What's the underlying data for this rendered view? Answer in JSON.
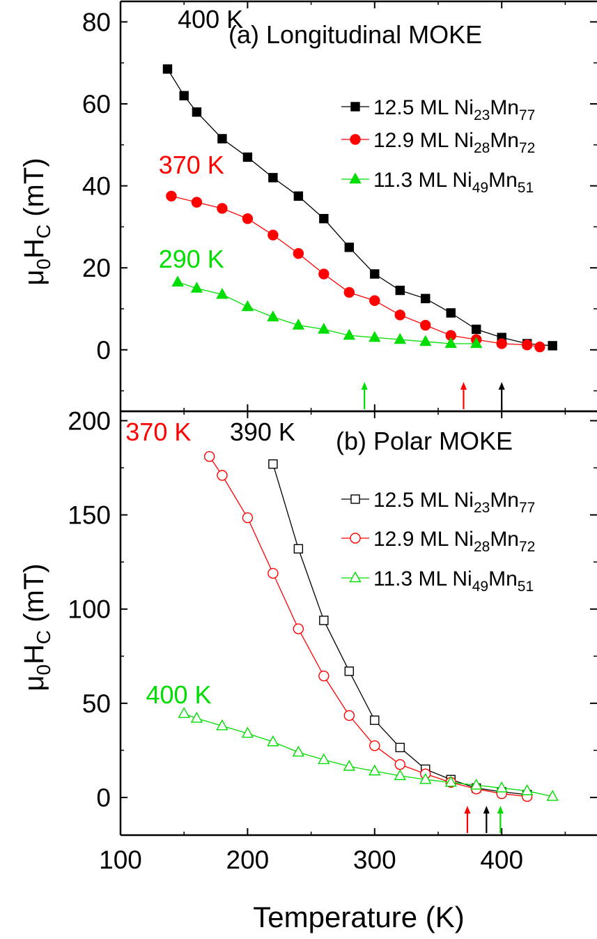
{
  "chart_data": [
    {
      "type": "line",
      "panel_label": "(a) Longitudinal MOKE",
      "xlabel": "",
      "ylabel": "μ0HC (mT)",
      "xlim": [
        100,
        475
      ],
      "ylim": [
        -15,
        85
      ],
      "x_ticks": [
        100,
        200,
        300,
        400
      ],
      "y_ticks": [
        0,
        20,
        40,
        60,
        80
      ],
      "y_tick_labels": [
        "0",
        "20",
        "40",
        "60",
        "80"
      ],
      "grid": false,
      "legend_position": "right",
      "series": [
        {
          "name": "12.5 ML Ni23Mn77",
          "label_main": "12.5 ML Ni",
          "sub1": "23",
          "mid": "Mn",
          "sub2": "77",
          "color": "#000000",
          "marker": "square",
          "filled": true,
          "x": [
            137,
            150,
            160,
            180,
            200,
            220,
            240,
            260,
            280,
            300,
            320,
            340,
            360,
            380,
            400,
            420,
            440
          ],
          "y": [
            68.5,
            62,
            58,
            51.5,
            47,
            42,
            37.5,
            32,
            25,
            18.5,
            14.5,
            12.5,
            9,
            5,
            3,
            1.5,
            1
          ]
        },
        {
          "name": "12.9 ML Ni28Mn72",
          "label_main": "12.9 ML Ni",
          "sub1": "28",
          "mid": "Mn",
          "sub2": "72",
          "color": "#ff0000",
          "marker": "circle",
          "filled": true,
          "x": [
            140,
            160,
            180,
            200,
            220,
            240,
            260,
            280,
            300,
            320,
            340,
            360,
            380,
            400,
            420,
            430
          ],
          "y": [
            37.5,
            36,
            34.5,
            32,
            28,
            23.5,
            18.5,
            14,
            12,
            8.5,
            6,
            3.5,
            2.5,
            1.5,
            1.2,
            0.7
          ]
        },
        {
          "name": "11.3 ML Ni49Mn51",
          "label_main": "11.3 ML Ni",
          "sub1": "49",
          "mid": "Mn",
          "sub2": "51",
          "color": "#00dd00",
          "marker": "triangle",
          "filled": true,
          "x": [
            145,
            160,
            180,
            200,
            220,
            240,
            260,
            280,
            300,
            320,
            340,
            360,
            380
          ],
          "y": [
            16.5,
            15,
            13.5,
            10.5,
            8,
            6,
            5,
            3.5,
            3,
            2.5,
            2,
            1.5,
            1.5
          ]
        }
      ],
      "annotations": [
        {
          "text": "400 K",
          "color": "#000000",
          "x": 145,
          "y": 78.5
        },
        {
          "text": "370 K",
          "color": "#ff0000",
          "x": 130,
          "y": 43
        },
        {
          "text": "290 K",
          "color": "#00dd00",
          "x": 130,
          "y": 20
        }
      ],
      "arrows": [
        {
          "x": 292,
          "color": "#00dd00"
        },
        {
          "x": 370,
          "color": "#ff0000"
        },
        {
          "x": 400,
          "color": "#000000"
        }
      ]
    },
    {
      "type": "line",
      "panel_label": "(b) Polar MOKE",
      "xlabel": "Temperature (K)",
      "ylabel": "μ0HC (mT)",
      "xlim": [
        100,
        475
      ],
      "ylim": [
        -20,
        205
      ],
      "x_ticks": [
        100,
        200,
        300,
        400
      ],
      "x_tick_labels": [
        "100",
        "200",
        "300",
        "400"
      ],
      "y_ticks": [
        0,
        50,
        100,
        150,
        200
      ],
      "y_tick_labels": [
        "0",
        "50",
        "100",
        "150",
        "200"
      ],
      "grid": false,
      "legend_position": "right",
      "series": [
        {
          "name": "12.5 ML Ni23Mn77",
          "label_main": "12.5 ML Ni",
          "sub1": "23",
          "mid": "Mn",
          "sub2": "77",
          "color": "#000000",
          "marker": "square",
          "filled": false,
          "x": [
            220,
            240,
            260,
            280,
            300,
            320,
            340,
            360,
            380,
            400,
            420
          ],
          "y": [
            177,
            132,
            94,
            67,
            41,
            26.5,
            15,
            9.5,
            5,
            3,
            1.5
          ]
        },
        {
          "name": "12.9 ML Ni28Mn72",
          "label_main": "12.9 ML Ni",
          "sub1": "28",
          "mid": "Mn",
          "sub2": "72",
          "color": "#ff0000",
          "marker": "circle",
          "filled": false,
          "x": [
            170,
            180,
            200,
            220,
            240,
            260,
            280,
            300,
            320,
            340,
            360,
            380,
            400,
            420
          ],
          "y": [
            181,
            171,
            148.5,
            119,
            89.5,
            64.5,
            43.5,
            27.5,
            17.5,
            12.5,
            8,
            4.5,
            2,
            0.5
          ]
        },
        {
          "name": "11.3 ML Ni49Mn51",
          "label_main": "11.3 ML Ni",
          "sub1": "49",
          "mid": "Mn",
          "sub2": "51",
          "color": "#00dd00",
          "marker": "triangle",
          "filled": false,
          "x": [
            150,
            160,
            180,
            200,
            220,
            240,
            260,
            280,
            300,
            320,
            340,
            360,
            380,
            400,
            420,
            440
          ],
          "y": [
            44.5,
            42,
            38,
            34,
            29.5,
            24,
            20,
            16.5,
            14,
            11.5,
            9.5,
            8,
            6.5,
            5,
            3.5,
            0.5
          ]
        }
      ],
      "annotations": [
        {
          "text": "370 K",
          "color": "#ff0000",
          "x": 104,
          "y": 189.5
        },
        {
          "text": "390 K",
          "color": "#000000",
          "x": 186,
          "y": 189.5
        },
        {
          "text": "400 K",
          "color": "#00dd00",
          "x": 120,
          "y": 50
        }
      ],
      "arrows": [
        {
          "x": 373,
          "color": "#ff0000"
        },
        {
          "x": 388,
          "color": "#000000"
        },
        {
          "x": 399,
          "color": "#00dd00"
        }
      ]
    }
  ]
}
